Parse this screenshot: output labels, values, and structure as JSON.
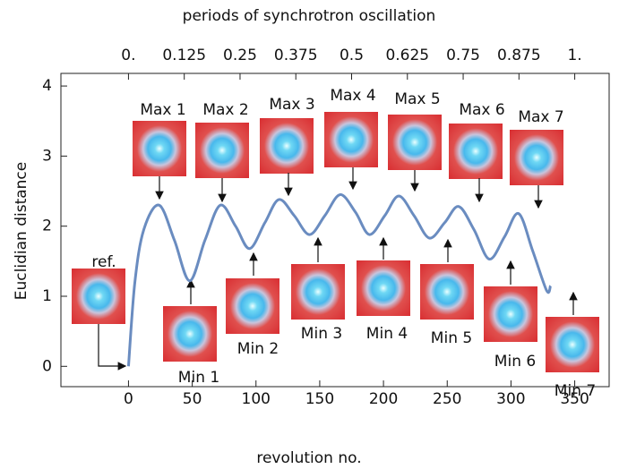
{
  "chart_data": {
    "type": "line",
    "title": "periods of synchrotron oscillation",
    "x_label": "revolution no.",
    "y_label": "Euclidian distance",
    "x": [
      0,
      5,
      12,
      24,
      36,
      48,
      60,
      72,
      84,
      95,
      107,
      118,
      130,
      142,
      154,
      166,
      178,
      189,
      201,
      212,
      224,
      236,
      248,
      259,
      271,
      283,
      295,
      306,
      317,
      328,
      331
    ],
    "series": [
      {
        "color": "#6a8cc0",
        "values": [
          0,
          1.2,
          1.95,
          2.3,
          1.8,
          1.22,
          1.8,
          2.3,
          2.0,
          1.68,
          2.05,
          2.38,
          2.15,
          1.88,
          2.15,
          2.45,
          2.2,
          1.88,
          2.15,
          2.43,
          2.15,
          1.83,
          2.05,
          2.28,
          1.95,
          1.53,
          1.85,
          2.18,
          1.65,
          1.08,
          1.15
        ]
      }
    ],
    "xlim": [
      -53,
      377
    ],
    "xticks": [
      0,
      50,
      100,
      150,
      200,
      250,
      300,
      350
    ],
    "ylim": [
      -0.29,
      4.18
    ],
    "yticks": [
      0,
      1,
      2,
      3,
      4
    ],
    "x2lim": [
      -0.1514,
      1.0771
    ],
    "x2ticks": [
      {
        "value": 0,
        "label": "0."
      },
      0.125,
      0.25,
      0.375,
      0.5,
      0.625,
      0.75,
      0.875,
      {
        "value": 1,
        "label": "1."
      }
    ],
    "annotations": [
      "ref.",
      "Max 1",
      "Max 2",
      "Max 3",
      "Max 4",
      "Max 5",
      "Max 6",
      "Max 7",
      "Min 1",
      "Min 2",
      "Min 3",
      "Min 4",
      "Min 5",
      "Min 6",
      "Min 7"
    ]
  }
}
